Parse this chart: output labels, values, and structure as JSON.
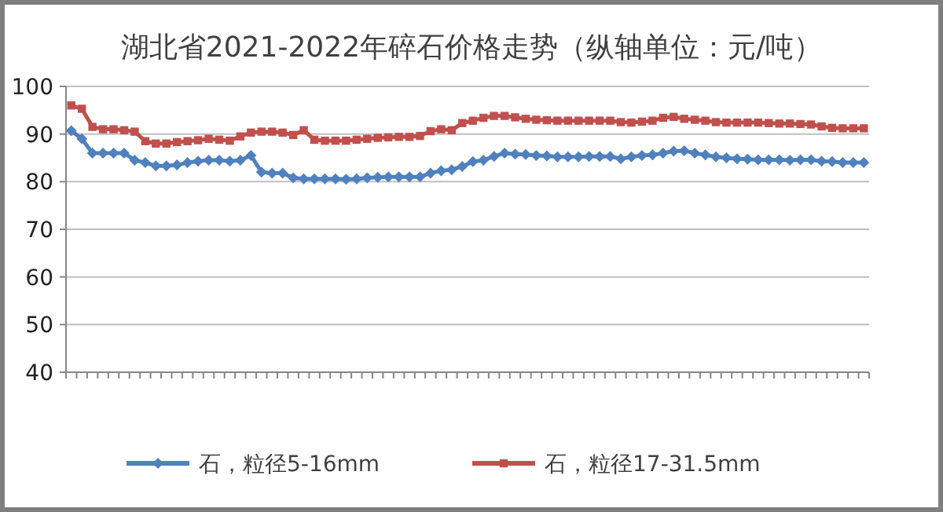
{
  "chart_data": {
    "type": "line",
    "title": "湖北省2021-2022年碎石价格走势（纵轴单位：元/吨）",
    "categories": [
      null,
      null,
      null,
      null,
      null,
      null,
      null,
      null,
      null,
      null,
      null,
      null,
      null,
      null,
      null,
      null,
      null,
      null,
      null,
      null,
      null,
      null,
      null,
      null,
      null,
      null,
      null,
      null,
      null,
      null,
      null,
      null,
      null,
      null,
      null,
      null,
      null,
      null,
      null,
      null,
      null,
      null,
      null,
      null,
      null,
      null,
      null,
      null,
      null,
      null,
      null,
      null,
      null,
      null,
      null,
      null,
      null,
      null,
      null,
      null,
      null,
      null,
      null,
      null,
      null,
      null,
      null,
      null,
      null,
      null,
      null,
      null,
      null,
      null,
      null,
      null
    ],
    "series": [
      {
        "name": "石，粒径5-16mm",
        "color": "#4f81bd",
        "marker": "diamond",
        "values": [
          90.7,
          89,
          86,
          86,
          86,
          86,
          84.5,
          84,
          83.3,
          83.3,
          83.5,
          84,
          84.3,
          84.5,
          84.5,
          84.3,
          84.5,
          85.5,
          82,
          81.8,
          81.8,
          80.8,
          80.6,
          80.6,
          80.6,
          80.6,
          80.5,
          80.6,
          80.8,
          80.9,
          81,
          81,
          81,
          81,
          81.8,
          82.3,
          82.5,
          83.2,
          84.2,
          84.5,
          85.3,
          86,
          85.8,
          85.7,
          85.5,
          85.4,
          85.2,
          85.2,
          85.2,
          85.3,
          85.3,
          85.3,
          84.8,
          85.2,
          85.5,
          85.6,
          86,
          86.4,
          86.5,
          86,
          85.6,
          85.2,
          85,
          84.8,
          84.7,
          84.6,
          84.6,
          84.6,
          84.5,
          84.6,
          84.6,
          84.3,
          84.2,
          84,
          84,
          84
        ]
      },
      {
        "name": "石，粒径17-31.5mm",
        "color": "#c0504d",
        "marker": "square",
        "values": [
          96,
          95.3,
          91.5,
          91,
          91,
          90.8,
          90.5,
          88.5,
          88,
          88,
          88.3,
          88.5,
          88.7,
          89,
          88.8,
          88.6,
          89.5,
          90.3,
          90.5,
          90.5,
          90.3,
          89.8,
          90.8,
          88.8,
          88.6,
          88.6,
          88.6,
          88.8,
          89,
          89.2,
          89.3,
          89.4,
          89.4,
          89.6,
          90.6,
          91,
          90.8,
          92.3,
          92.8,
          93.4,
          93.8,
          93.8,
          93.5,
          93.2,
          93,
          92.9,
          92.8,
          92.8,
          92.8,
          92.8,
          92.8,
          92.8,
          92.5,
          92.4,
          92.6,
          92.8,
          93.4,
          93.6,
          93.2,
          93,
          92.8,
          92.5,
          92.4,
          92.4,
          92.4,
          92.4,
          92.3,
          92.2,
          92.2,
          92.1,
          92,
          91.6,
          91.3,
          91.2,
          91.2,
          91.2
        ]
      }
    ],
    "ylim": [
      40,
      100
    ],
    "yticks": [
      40,
      50,
      60,
      70,
      80,
      90,
      100
    ],
    "grid": "y",
    "legend": "bottom"
  }
}
